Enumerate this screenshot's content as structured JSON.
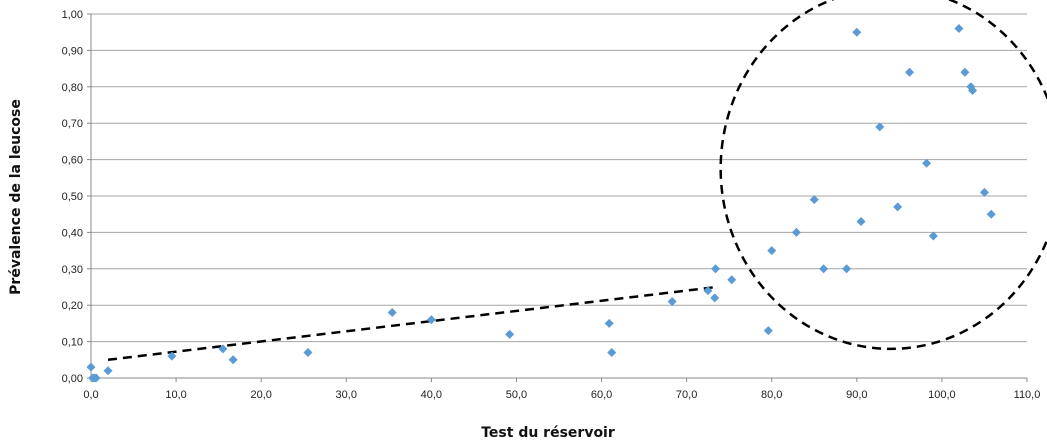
{
  "chart_data": {
    "type": "scatter",
    "title": "",
    "xlabel": "Test du réservoir",
    "ylabel": "Prévalence de la leucose",
    "xlim": [
      0,
      110
    ],
    "ylim": [
      0,
      1
    ],
    "grid": "horizontal",
    "x_ticks": [
      "0,0",
      "10,0",
      "20,0",
      "30,0",
      "40,0",
      "50,0",
      "60,0",
      "70,0",
      "80,0",
      "90,0",
      "100,0",
      "110,0"
    ],
    "y_ticks": [
      "0,00",
      "0,10",
      "0,20",
      "0,30",
      "0,40",
      "0,50",
      "0,60",
      "0,70",
      "0,80",
      "0,90",
      "1,00"
    ],
    "marker_color": "#5B9BD5",
    "series": [
      {
        "points": [
          [
            0.0,
            0.03
          ],
          [
            0.2,
            0.0
          ],
          [
            0.4,
            0.0
          ],
          [
            0.6,
            0.0
          ],
          [
            2.0,
            0.02
          ],
          [
            9.5,
            0.06
          ],
          [
            15.5,
            0.08
          ],
          [
            16.7,
            0.05
          ],
          [
            25.5,
            0.07
          ],
          [
            35.4,
            0.18
          ],
          [
            40.0,
            0.16
          ],
          [
            49.2,
            0.12
          ],
          [
            60.9,
            0.15
          ],
          [
            61.2,
            0.07
          ],
          [
            68.3,
            0.21
          ],
          [
            72.5,
            0.24
          ],
          [
            73.3,
            0.22
          ],
          [
            73.4,
            0.3
          ],
          [
            75.3,
            0.27
          ],
          [
            79.6,
            0.13
          ],
          [
            80.0,
            0.35
          ],
          [
            82.9,
            0.4
          ],
          [
            85.0,
            0.49
          ],
          [
            86.1,
            0.3
          ],
          [
            88.8,
            0.3
          ],
          [
            90.0,
            0.95
          ],
          [
            90.5,
            0.43
          ],
          [
            92.7,
            0.69
          ],
          [
            94.8,
            0.47
          ],
          [
            96.2,
            0.84
          ],
          [
            98.2,
            0.59
          ],
          [
            99.0,
            0.39
          ],
          [
            102.0,
            0.96
          ],
          [
            102.7,
            0.84
          ],
          [
            103.4,
            0.8
          ],
          [
            103.6,
            0.79
          ],
          [
            105.0,
            0.51
          ],
          [
            105.8,
            0.45
          ]
        ]
      }
    ],
    "annotations": [
      {
        "type": "dashed-line",
        "from": [
          2.0,
          0.05
        ],
        "to": [
          73.5,
          0.25
        ]
      },
      {
        "type": "dashed-ellipse",
        "center": [
          94.0,
          0.575
        ],
        "radius_x": 20.0,
        "radius_y": 0.495
      }
    ]
  }
}
